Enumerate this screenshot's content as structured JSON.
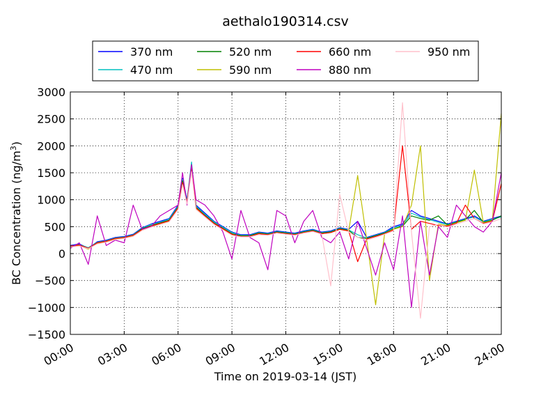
{
  "chart_data": {
    "type": "line",
    "title": "aethalo190314.csv",
    "xlabel": "Time on 2019-03-14 (JST)",
    "ylabel": "BC Concentration (ng/m³)",
    "ylabel_main": "BC Concentration (ng/m",
    "ylabel_sup": "3",
    "ylabel_end": ")",
    "x_unit": "hour",
    "xlim": [
      0,
      24
    ],
    "ylim": [
      -1500,
      3000
    ],
    "x_ticks": [
      0,
      3,
      6,
      9,
      12,
      15,
      18,
      21,
      24
    ],
    "x_tick_labels": [
      "00:00",
      "03:00",
      "06:00",
      "09:00",
      "12:00",
      "15:00",
      "18:00",
      "21:00",
      "24:00"
    ],
    "y_ticks": [
      -1500,
      -1000,
      -500,
      0,
      500,
      1000,
      1500,
      2000,
      2500,
      3000
    ],
    "y_tick_labels": [
      "−1500",
      "−1000",
      "−500",
      "0",
      "500",
      "1000",
      "1500",
      "2000",
      "2500",
      "3000"
    ],
    "grid": true,
    "legend_position": "top",
    "x": [
      0.0,
      0.5,
      1.0,
      1.5,
      2.0,
      2.5,
      3.0,
      3.5,
      4.0,
      4.5,
      5.0,
      5.5,
      6.0,
      6.25,
      6.5,
      6.75,
      7.0,
      7.5,
      8.0,
      8.5,
      9.0,
      9.5,
      10.0,
      10.5,
      11.0,
      11.5,
      12.0,
      12.5,
      13.0,
      13.5,
      14.0,
      14.5,
      15.0,
      15.5,
      16.0,
      16.5,
      17.0,
      17.5,
      18.0,
      18.5,
      19.0,
      19.5,
      20.0,
      20.5,
      21.0,
      21.5,
      22.0,
      22.5,
      23.0,
      23.5,
      24.0
    ],
    "series": [
      {
        "name": "370 nm",
        "color": "#0000ff",
        "values": [
          150,
          180,
          100,
          220,
          250,
          300,
          320,
          360,
          480,
          550,
          600,
          650,
          900,
          1400,
          1000,
          1600,
          900,
          750,
          600,
          500,
          400,
          350,
          350,
          400,
          380,
          420,
          400,
          380,
          420,
          450,
          400,
          420,
          480,
          450,
          600,
          300,
          350,
          400,
          500,
          550,
          800,
          700,
          650,
          600,
          550,
          600,
          650,
          700,
          600,
          650,
          700
        ]
      },
      {
        "name": "470 nm",
        "color": "#00bfbf",
        "values": [
          140,
          170,
          110,
          210,
          240,
          290,
          310,
          350,
          470,
          540,
          580,
          640,
          880,
          1380,
          980,
          1700,
          880,
          730,
          590,
          490,
          390,
          340,
          340,
          390,
          370,
          410,
          390,
          370,
          410,
          440,
          390,
          410,
          470,
          440,
          350,
          290,
          340,
          390,
          480,
          530,
          750,
          680,
          630,
          580,
          540,
          590,
          640,
          680,
          590,
          640,
          680
        ]
      },
      {
        "name": "520 nm",
        "color": "#008000",
        "values": [
          130,
          160,
          90,
          200,
          230,
          280,
          300,
          340,
          460,
          520,
          570,
          620,
          860,
          1350,
          960,
          1620,
          860,
          710,
          570,
          470,
          370,
          330,
          330,
          380,
          360,
          400,
          380,
          360,
          400,
          430,
          380,
          400,
          460,
          430,
          300,
          280,
          330,
          380,
          460,
          510,
          700,
          650,
          620,
          700,
          530,
          580,
          630,
          800,
          580,
          620,
          700
        ]
      },
      {
        "name": "590 nm",
        "color": "#bfbf00",
        "values": [
          120,
          150,
          80,
          190,
          220,
          270,
          290,
          330,
          440,
          500,
          550,
          600,
          830,
          1300,
          930,
          1560,
          830,
          690,
          550,
          450,
          350,
          320,
          320,
          370,
          350,
          390,
          370,
          350,
          390,
          420,
          370,
          390,
          450,
          420,
          1450,
          270,
          -950,
          370,
          450,
          500,
          900,
          2000,
          -500,
          550,
          520,
          570,
          620,
          1550,
          570,
          610,
          2600
        ]
      },
      {
        "name": "660 nm",
        "color": "#ff0000",
        "values": [
          140,
          160,
          100,
          200,
          230,
          280,
          300,
          340,
          450,
          510,
          560,
          610,
          850,
          1320,
          950,
          1640,
          850,
          700,
          560,
          460,
          360,
          320,
          320,
          370,
          350,
          390,
          370,
          350,
          390,
          420,
          370,
          390,
          450,
          420,
          -150,
          270,
          320,
          370,
          440,
          2000,
          450,
          600,
          560,
          520,
          510,
          560,
          900,
          650,
          560,
          600,
          1300
        ]
      },
      {
        "name": "880 nm",
        "color": "#bf00bf",
        "values": [
          100,
          200,
          -200,
          700,
          150,
          250,
          200,
          900,
          450,
          500,
          700,
          800,
          900,
          1500,
          900,
          1650,
          1000,
          900,
          700,
          400,
          -100,
          800,
          300,
          200,
          -300,
          800,
          700,
          200,
          600,
          800,
          300,
          200,
          400,
          -100,
          600,
          100,
          -400,
          200,
          -300,
          700,
          -1000,
          600,
          -400,
          500,
          300,
          900,
          700,
          500,
          400,
          600,
          1500
        ]
      },
      {
        "name": "950 nm",
        "color": "#ffc0cb",
        "values": [
          120,
          140,
          90,
          180,
          210,
          260,
          280,
          320,
          430,
          490,
          540,
          590,
          820,
          1280,
          920,
          1520,
          820,
          680,
          540,
          440,
          340,
          310,
          310,
          350,
          340,
          380,
          360,
          340,
          380,
          410,
          360,
          -600,
          1100,
          400,
          300,
          250,
          300,
          360,
          420,
          2800,
          400,
          -1200,
          500,
          540,
          490,
          550,
          600,
          650,
          550,
          590,
          650
        ]
      }
    ]
  }
}
